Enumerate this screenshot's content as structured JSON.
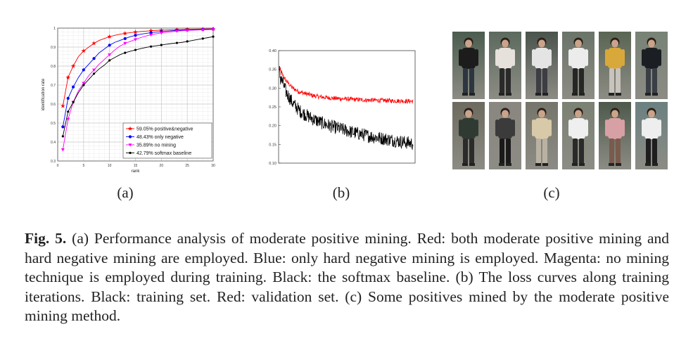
{
  "figure": {
    "sublabels": [
      "(a)",
      "(b)",
      "(c)"
    ],
    "caption": {
      "label": "Fig. 5.",
      "text": "(a) Performance analysis of moderate positive mining. Red: both moderate positive mining and hard negative mining are employed. Blue: only hard negative mining is employed. Magenta: no mining technique is employed during training. Black: the softmax baseline. (b) The loss curves along training iterations. Black: training set. Red: validation set. (c) Some positives mined by the moderate positive mining method."
    }
  },
  "chart_data": [
    {
      "type": "line",
      "panel": "(a)",
      "xlabel": "rank",
      "ylabel": "identification rate",
      "xlim": [
        0,
        30
      ],
      "ylim": [
        0.3,
        1.0
      ],
      "xticks": [
        0,
        5,
        10,
        15,
        20,
        25,
        30
      ],
      "yticks": [
        0.3,
        0.4,
        0.5,
        0.6,
        0.7,
        0.8,
        0.9,
        1
      ],
      "ytick_labels": [
        "0.3",
        "0.4",
        "0.5",
        "0.6",
        "0.7",
        "0.8",
        "0.9",
        "1"
      ],
      "grid": true,
      "legend_position": "bottom-right",
      "x": [
        1,
        2,
        3,
        4,
        5,
        6,
        7,
        8,
        9,
        10,
        11,
        12,
        13,
        14,
        15,
        16,
        17,
        18,
        19,
        20,
        21,
        22,
        23,
        24,
        25,
        26,
        27,
        28,
        29,
        30
      ],
      "series": [
        {
          "name": "59.05% positive&negative",
          "color": "#ff0000",
          "marker": "star",
          "values": [
            0.59,
            0.74,
            0.8,
            0.85,
            0.88,
            0.9,
            0.92,
            0.935,
            0.945,
            0.955,
            0.962,
            0.968,
            0.972,
            0.976,
            0.979,
            0.982,
            0.984,
            0.986,
            0.988,
            0.989,
            0.99,
            0.991,
            0.992,
            0.993,
            0.994,
            0.994,
            0.995,
            0.995,
            0.996,
            0.996
          ]
        },
        {
          "name": "48.43% only negative",
          "color": "#0000ff",
          "marker": "circle",
          "values": [
            0.48,
            0.63,
            0.69,
            0.74,
            0.78,
            0.81,
            0.84,
            0.87,
            0.89,
            0.91,
            0.925,
            0.935,
            0.945,
            0.955,
            0.962,
            0.968,
            0.972,
            0.976,
            0.979,
            0.982,
            0.984,
            0.986,
            0.988,
            0.989,
            0.99,
            0.991,
            0.992,
            0.993,
            0.994,
            0.995
          ]
        },
        {
          "name": "35.89% no mining",
          "color": "#ff00ff",
          "marker": "triangle",
          "values": [
            0.36,
            0.52,
            0.61,
            0.67,
            0.71,
            0.75,
            0.78,
            0.81,
            0.835,
            0.86,
            0.885,
            0.905,
            0.92,
            0.93,
            0.94,
            0.95,
            0.958,
            0.965,
            0.97,
            0.975,
            0.978,
            0.981,
            0.984,
            0.986,
            0.988,
            0.989,
            0.99,
            0.991,
            0.992,
            0.993
          ]
        },
        {
          "name": "42.79% softmax baseline",
          "color": "#000000",
          "marker": "dot",
          "values": [
            0.43,
            0.56,
            0.61,
            0.66,
            0.7,
            0.73,
            0.76,
            0.785,
            0.805,
            0.83,
            0.845,
            0.86,
            0.87,
            0.878,
            0.885,
            0.892,
            0.898,
            0.903,
            0.907,
            0.911,
            0.915,
            0.919,
            0.922,
            0.925,
            0.93,
            0.935,
            0.94,
            0.945,
            0.95,
            0.955
          ]
        }
      ]
    },
    {
      "type": "line",
      "panel": "(b)",
      "xlabel": "",
      "ylabel": "",
      "ylim": [
        0.1,
        0.4
      ],
      "yticks": [
        0.1,
        0.15,
        0.2,
        0.25,
        0.3,
        0.35,
        0.4
      ],
      "ytick_labels": [
        "0.10",
        "0.15",
        "0.20",
        "0.25",
        "0.30",
        "0.35",
        "0.40"
      ],
      "xticks": [],
      "grid": false,
      "series": [
        {
          "role": "validation set",
          "color": "#ff0000",
          "noise": 0.006,
          "trend": [
            0.35,
            0.32,
            0.3,
            0.29,
            0.285,
            0.28,
            0.277,
            0.275,
            0.273,
            0.272,
            0.271,
            0.27,
            0.269,
            0.268,
            0.268,
            0.267,
            0.267,
            0.266,
            0.266,
            0.265,
            0.265
          ]
        },
        {
          "role": "training set",
          "color": "#000000",
          "noise": 0.018,
          "trend": [
            0.34,
            0.29,
            0.26,
            0.24,
            0.228,
            0.218,
            0.21,
            0.203,
            0.197,
            0.192,
            0.187,
            0.182,
            0.178,
            0.174,
            0.17,
            0.167,
            0.164,
            0.161,
            0.158,
            0.155,
            0.152
          ]
        }
      ]
    }
  ],
  "gallery": {
    "columns": 6,
    "rows": 2,
    "persons": [
      {
        "shirt": "#1c1c1c",
        "pants": "#2d3540",
        "bg": "#4b5c4f"
      },
      {
        "shirt": "#e6e1da",
        "pants": "#2a2a2a",
        "bg": "#5c6a5e"
      },
      {
        "shirt": "#e4e4e4",
        "pants": "#3d3d44",
        "bg": "#4a534c"
      },
      {
        "shirt": "#ececec",
        "pants": "#262626",
        "bg": "#6b7469"
      },
      {
        "shirt": "#d9a83a",
        "pants": "#c8c3bd",
        "bg": "#5a6553"
      },
      {
        "shirt": "#1b1f24",
        "pants": "#3a3f46",
        "bg": "#778275"
      },
      {
        "shirt": "#2f3b32",
        "pants": "#2b2b2b",
        "bg": "#6d6a5f"
      },
      {
        "shirt": "#3b3b3b",
        "pants": "#1a1a1a",
        "bg": "#8a8680"
      },
      {
        "shirt": "#d8c9a8",
        "pants": "#b9b2a3",
        "bg": "#76756c"
      },
      {
        "shirt": "#efefef",
        "pants": "#2a2a2a",
        "bg": "#7b8173"
      },
      {
        "shirt": "#d7a0a4",
        "pants": "#7a5a4c",
        "bg": "#4d594b"
      },
      {
        "shirt": "#eeeeee",
        "pants": "#1e1e1e",
        "bg": "#6b8080"
      }
    ]
  }
}
